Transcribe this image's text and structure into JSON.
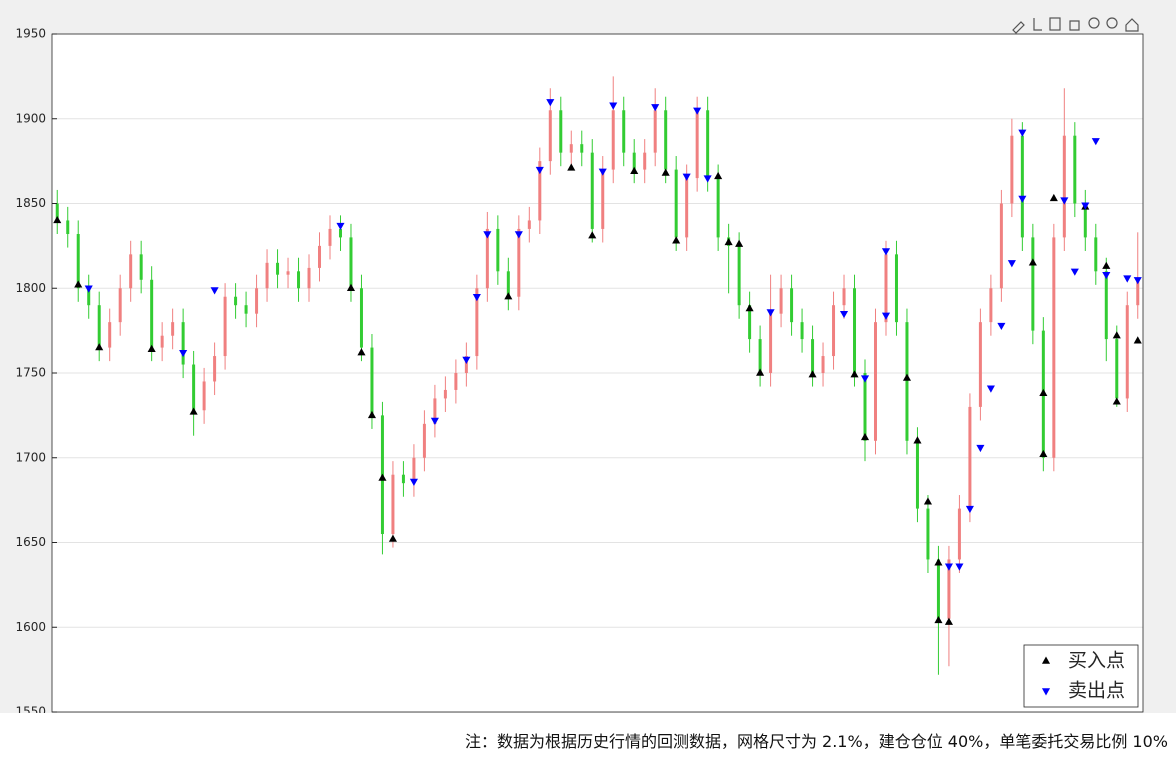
{
  "chart_data": {
    "type": "candlestick",
    "ylim": [
      1550,
      1950
    ],
    "yticks": [
      1550,
      1600,
      1650,
      1700,
      1750,
      1800,
      1850,
      1900,
      1950
    ],
    "grid": true,
    "up_color": "#f08080",
    "down_color": "#33cc33",
    "open": [
      1850,
      1840,
      1832,
      1800,
      1790,
      1765,
      1780,
      1800,
      1820,
      1805,
      1765,
      1772,
      1780,
      1755,
      1728,
      1745,
      1760,
      1795,
      1790,
      1785,
      1800,
      1815,
      1808,
      1810,
      1800,
      1812,
      1825,
      1835,
      1830,
      1800,
      1765,
      1725,
      1655,
      1690,
      1685,
      1700,
      1720,
      1735,
      1740,
      1750,
      1760,
      1800,
      1835,
      1810,
      1795,
      1835,
      1840,
      1875,
      1905,
      1880,
      1885,
      1880,
      1835,
      1870,
      1905,
      1880,
      1870,
      1880,
      1905,
      1870,
      1830,
      1865,
      1905,
      1865,
      1830,
      1825,
      1790,
      1770,
      1750,
      1785,
      1800,
      1780,
      1770,
      1750,
      1760,
      1790,
      1800,
      1750,
      1710,
      1780,
      1820,
      1780,
      1710,
      1670,
      1640,
      1605,
      1640,
      1670,
      1730,
      1780,
      1800,
      1850,
      1890,
      1830,
      1775,
      1700,
      1830,
      1890,
      1850,
      1830,
      1810,
      1770,
      1735,
      1790
    ],
    "high": [
      1858,
      1848,
      1840,
      1808,
      1798,
      1788,
      1808,
      1828,
      1828,
      1813,
      1780,
      1788,
      1788,
      1763,
      1753,
      1768,
      1803,
      1803,
      1798,
      1808,
      1823,
      1823,
      1818,
      1818,
      1820,
      1833,
      1843,
      1843,
      1838,
      1808,
      1773,
      1733,
      1698,
      1698,
      1708,
      1728,
      1743,
      1748,
      1758,
      1768,
      1808,
      1845,
      1843,
      1818,
      1843,
      1848,
      1883,
      1918,
      1913,
      1893,
      1893,
      1888,
      1878,
      1925,
      1913,
      1888,
      1888,
      1918,
      1913,
      1878,
      1873,
      1913,
      1913,
      1873,
      1838,
      1833,
      1798,
      1778,
      1808,
      1808,
      1808,
      1788,
      1778,
      1768,
      1798,
      1808,
      1808,
      1758,
      1788,
      1828,
      1828,
      1788,
      1718,
      1678,
      1648,
      1648,
      1678,
      1738,
      1788,
      1808,
      1858,
      1900,
      1898,
      1838,
      1783,
      1838,
      1918,
      1898,
      1858,
      1838,
      1818,
      1778,
      1798,
      1833
    ],
    "low": [
      1832,
      1824,
      1792,
      1782,
      1757,
      1757,
      1772,
      1792,
      1797,
      1757,
      1757,
      1764,
      1747,
      1713,
      1720,
      1737,
      1752,
      1782,
      1777,
      1777,
      1792,
      1800,
      1800,
      1792,
      1792,
      1804,
      1817,
      1822,
      1792,
      1757,
      1717,
      1643,
      1647,
      1677,
      1677,
      1692,
      1712,
      1727,
      1732,
      1742,
      1752,
      1792,
      1802,
      1787,
      1787,
      1827,
      1832,
      1867,
      1872,
      1872,
      1872,
      1827,
      1827,
      1862,
      1872,
      1862,
      1862,
      1872,
      1862,
      1822,
      1822,
      1857,
      1857,
      1822,
      1797,
      1782,
      1762,
      1742,
      1742,
      1777,
      1772,
      1762,
      1742,
      1742,
      1752,
      1782,
      1742,
      1698,
      1702,
      1772,
      1772,
      1702,
      1662,
      1632,
      1572,
      1577,
      1632,
      1662,
      1722,
      1772,
      1792,
      1842,
      1822,
      1767,
      1692,
      1692,
      1822,
      1842,
      1822,
      1802,
      1757,
      1730,
      1727,
      1782
    ],
    "close": [
      1840,
      1832,
      1800,
      1790,
      1765,
      1780,
      1800,
      1820,
      1805,
      1765,
      1772,
      1780,
      1755,
      1728,
      1745,
      1760,
      1795,
      1790,
      1785,
      1800,
      1815,
      1808,
      1810,
      1800,
      1812,
      1825,
      1835,
      1830,
      1800,
      1765,
      1725,
      1655,
      1690,
      1685,
      1700,
      1720,
      1735,
      1740,
      1750,
      1760,
      1800,
      1835,
      1810,
      1795,
      1835,
      1840,
      1875,
      1905,
      1880,
      1885,
      1880,
      1835,
      1870,
      1905,
      1880,
      1870,
      1880,
      1905,
      1870,
      1830,
      1865,
      1905,
      1865,
      1830,
      1825,
      1790,
      1770,
      1750,
      1785,
      1800,
      1780,
      1770,
      1750,
      1760,
      1790,
      1800,
      1750,
      1710,
      1780,
      1820,
      1780,
      1710,
      1670,
      1640,
      1605,
      1640,
      1670,
      1730,
      1780,
      1800,
      1850,
      1890,
      1830,
      1775,
      1700,
      1830,
      1890,
      1850,
      1830,
      1810,
      1770,
      1735,
      1790,
      1805
    ],
    "series": [
      {
        "name": "买入点",
        "color": "#000000",
        "marker": "up",
        "x": [
          0,
          2,
          4,
          9,
          13,
          28,
          29,
          30,
          31,
          32,
          43,
          49,
          51,
          55,
          58,
          59,
          63,
          64,
          65,
          66,
          67,
          72,
          76,
          77,
          81,
          82,
          83,
          84,
          84,
          85,
          93,
          94,
          94,
          95,
          98,
          100,
          101,
          101,
          103
        ],
        "values": [
          1840,
          1802,
          1765,
          1764,
          1727,
          1800,
          1762,
          1725,
          1688,
          1652,
          1795,
          1871,
          1831,
          1869,
          1868,
          1828,
          1866,
          1827,
          1826,
          1788,
          1750,
          1749,
          1749,
          1712,
          1747,
          1710,
          1674,
          1638,
          1604,
          1603,
          1815,
          1738,
          1702,
          1853,
          1848,
          1813,
          1772,
          1733,
          1769
        ]
      },
      {
        "name": "卖出点",
        "color": "#0000ff",
        "marker": "down",
        "x": [
          3,
          12,
          15,
          27,
          34,
          36,
          39,
          40,
          41,
          44,
          46,
          47,
          52,
          53,
          57,
          60,
          61,
          62,
          68,
          75,
          77,
          79,
          79,
          85,
          86,
          87,
          88,
          89,
          90,
          91,
          92,
          92,
          96,
          97,
          98,
          99,
          100,
          102,
          103
        ],
        "values": [
          1800,
          1762,
          1799,
          1837,
          1686,
          1722,
          1758,
          1795,
          1832,
          1832,
          1870,
          1910,
          1869,
          1908,
          1907,
          1866,
          1905,
          1865,
          1786,
          1785,
          1747,
          1822,
          1784,
          1636,
          1636,
          1670,
          1706,
          1741,
          1778,
          1815,
          1853,
          1892,
          1852,
          1810,
          1849,
          1887,
          1808,
          1806,
          1805
        ]
      }
    ],
    "legend": "lower right",
    "footnote": "注：数据为根据历史行情的回测数据，网格尺寸为 2.1%，建仓仓位 40%，单笔委托交易比例 10%"
  }
}
